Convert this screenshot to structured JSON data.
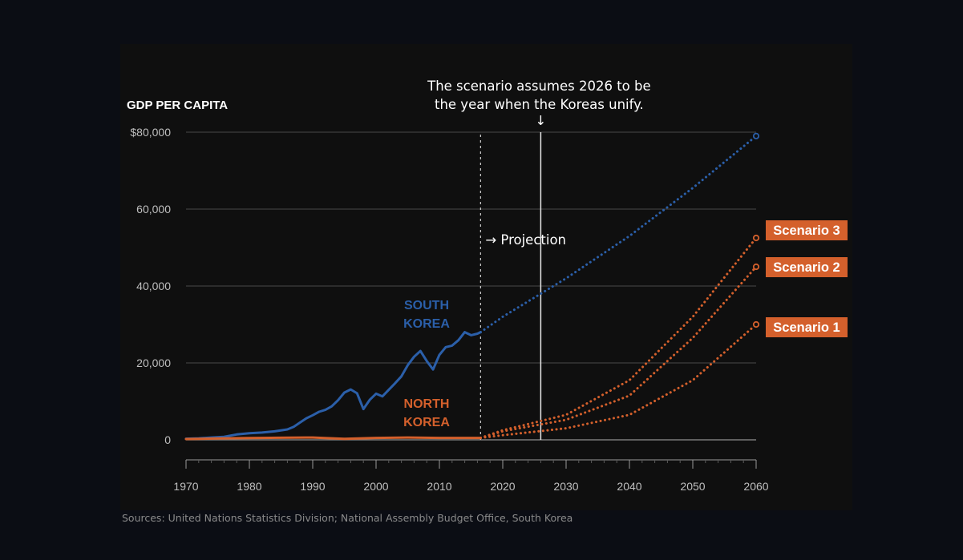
{
  "chart_data": {
    "type": "line",
    "ylabel": "GDP PER CAPITA",
    "ylim": [
      0,
      80000
    ],
    "xlim": [
      1970,
      2060
    ],
    "y_ticks": [
      {
        "value": 0,
        "label": "0"
      },
      {
        "value": 20000,
        "label": "20,000"
      },
      {
        "value": 40000,
        "label": "40,000"
      },
      {
        "value": 60000,
        "label": "60,000"
      },
      {
        "value": 80000,
        "label": "$80,000"
      }
    ],
    "x_ticks": [
      1970,
      1980,
      1990,
      2000,
      2010,
      2020,
      2030,
      2040,
      2050,
      2060
    ],
    "grid": "horizontal",
    "projection_start": 2016.5,
    "unification_year": 2026,
    "annotations": {
      "unification": [
        "The scenario assumes 2026 to be",
        "the year when the Koreas unify."
      ],
      "projection": "→ Projection",
      "south_label": [
        "SOUTH",
        "KOREA"
      ],
      "north_label": [
        "NORTH",
        "KOREA"
      ]
    },
    "colors": {
      "south": "#2b5fa9",
      "north": "#d4602c",
      "grid": "#4a4a4a",
      "axis": "#9a9a9a"
    },
    "series": [
      {
        "name": "SOUTH KOREA",
        "style": "solid",
        "x": [
          1970,
          1972,
          1974,
          1976,
          1978,
          1980,
          1982,
          1984,
          1986,
          1987,
          1988,
          1989,
          1990,
          1991,
          1992,
          1993,
          1994,
          1995,
          1996,
          1997,
          1998,
          1999,
          2000,
          2001,
          2002,
          2003,
          2004,
          2005,
          2006,
          2007,
          2008,
          2009,
          2010,
          2011,
          2012,
          2013,
          2014,
          2015,
          2016,
          2016.5
        ],
        "values": [
          300,
          400,
          600,
          800,
          1400,
          1700,
          1900,
          2200,
          2700,
          3400,
          4500,
          5600,
          6400,
          7300,
          7800,
          8700,
          10300,
          12300,
          13100,
          12100,
          8000,
          10400,
          12000,
          11300,
          13000,
          14700,
          16500,
          19400,
          21600,
          23100,
          20500,
          18300,
          22100,
          24100,
          24500,
          25900,
          28000,
          27200,
          27600,
          28000
        ]
      },
      {
        "name": "SOUTH KOREA projection",
        "style": "dotted",
        "x": [
          2016.5,
          2020,
          2030,
          2040,
          2050,
          2060
        ],
        "values": [
          28000,
          32000,
          42000,
          53000,
          65500,
          79000
        ],
        "end_marker": true
      },
      {
        "name": "NORTH KOREA",
        "style": "solid",
        "x": [
          1970,
          1975,
          1980,
          1985,
          1990,
          1995,
          2000,
          2005,
          2010,
          2016.5
        ],
        "values": [
          200,
          350,
          450,
          550,
          600,
          250,
          500,
          600,
          500,
          500
        ],
        "end_marker": false
      },
      {
        "name": "Scenario 3",
        "style": "dotted",
        "x": [
          2016.5,
          2020,
          2030,
          2040,
          2050,
          2060
        ],
        "values": [
          500,
          2500,
          6500,
          15500,
          32000,
          52500
        ],
        "end_marker": true
      },
      {
        "name": "Scenario 2",
        "style": "dotted",
        "x": [
          2016.5,
          2020,
          2030,
          2040,
          2050,
          2060
        ],
        "values": [
          500,
          2200,
          5200,
          11500,
          26500,
          45000
        ],
        "end_marker": true
      },
      {
        "name": "Scenario 1",
        "style": "dotted",
        "x": [
          2016.5,
          2020,
          2030,
          2040,
          2050,
          2060
        ],
        "values": [
          500,
          1200,
          3000,
          6500,
          15500,
          30000
        ],
        "end_marker": true
      }
    ],
    "scenario_labels": [
      "Scenario 3",
      "Scenario 2",
      "Scenario 1"
    ]
  },
  "source": "Sources: United Nations Statistics Division; National Assembly Budget Office, South Korea"
}
